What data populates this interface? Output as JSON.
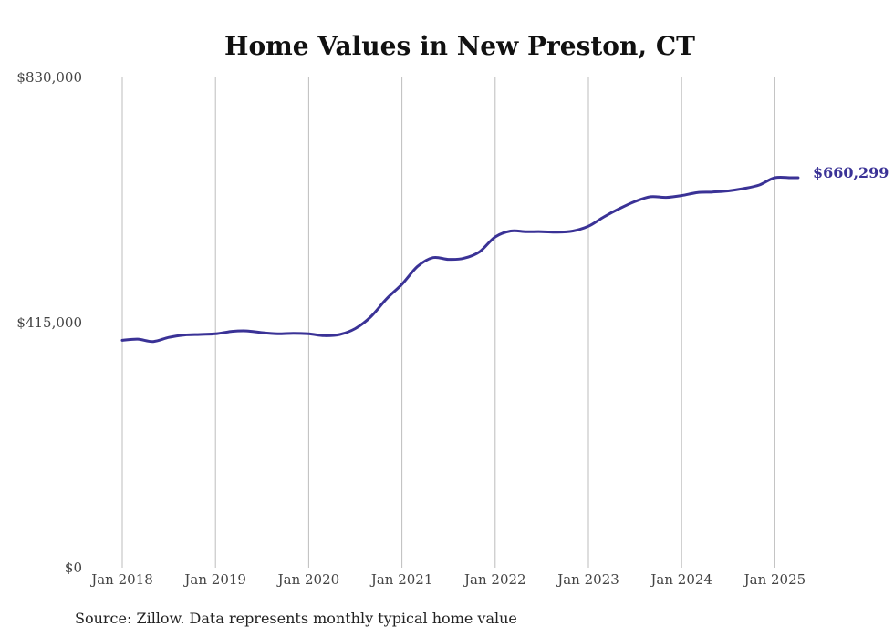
{
  "chart_data": {
    "type": "line",
    "title": "Home Values in New Preston, CT",
    "xlabel": "",
    "ylabel": "",
    "ylim": [
      0,
      830000
    ],
    "y_ticks": [
      0,
      415000,
      830000
    ],
    "y_tick_labels": [
      "$0",
      "$415,000",
      "$830,000"
    ],
    "x_ticks": [
      "2018-01",
      "2019-01",
      "2020-01",
      "2021-01",
      "2022-01",
      "2023-01",
      "2024-01",
      "2025-01"
    ],
    "x_tick_labels": [
      "Jan 2018",
      "Jan 2019",
      "Jan 2020",
      "Jan 2021",
      "Jan 2022",
      "Jan 2023",
      "Jan 2024",
      "Jan 2025"
    ],
    "grid": "vertical",
    "line_color": "#3a3296",
    "end_label": "$660,299",
    "series": [
      {
        "x": [
          "2018-01",
          "2018-03",
          "2018-05",
          "2018-07",
          "2018-09",
          "2018-11",
          "2019-01",
          "2019-03",
          "2019-05",
          "2019-07",
          "2019-09",
          "2019-11",
          "2020-01",
          "2020-03",
          "2020-05",
          "2020-07",
          "2020-09",
          "2020-11",
          "2021-01",
          "2021-03",
          "2021-05",
          "2021-07",
          "2021-09",
          "2021-11",
          "2022-01",
          "2022-03",
          "2022-05",
          "2022-07",
          "2022-09",
          "2022-11",
          "2023-01",
          "2023-03",
          "2023-05",
          "2023-07",
          "2023-09",
          "2023-11",
          "2024-01",
          "2024-03",
          "2024-05",
          "2024-07",
          "2024-09",
          "2024-11",
          "2025-01",
          "2025-03",
          "2025-04"
        ],
        "values": [
          385000,
          387000,
          383000,
          390000,
          394000,
          395000,
          396000,
          400000,
          401000,
          398000,
          396000,
          397000,
          396000,
          393000,
          395000,
          405000,
          425000,
          455000,
          480000,
          510000,
          525000,
          522000,
          524000,
          535000,
          560000,
          570000,
          569000,
          569000,
          568000,
          570000,
          578000,
          594000,
          608000,
          620000,
          628000,
          627000,
          630000,
          635000,
          636000,
          638000,
          642000,
          648000,
          660299,
          660299,
          660299
        ],
        "note_x_last": ""
      }
    ]
  },
  "source": "Source: Zillow. Data represents monthly typical home value"
}
